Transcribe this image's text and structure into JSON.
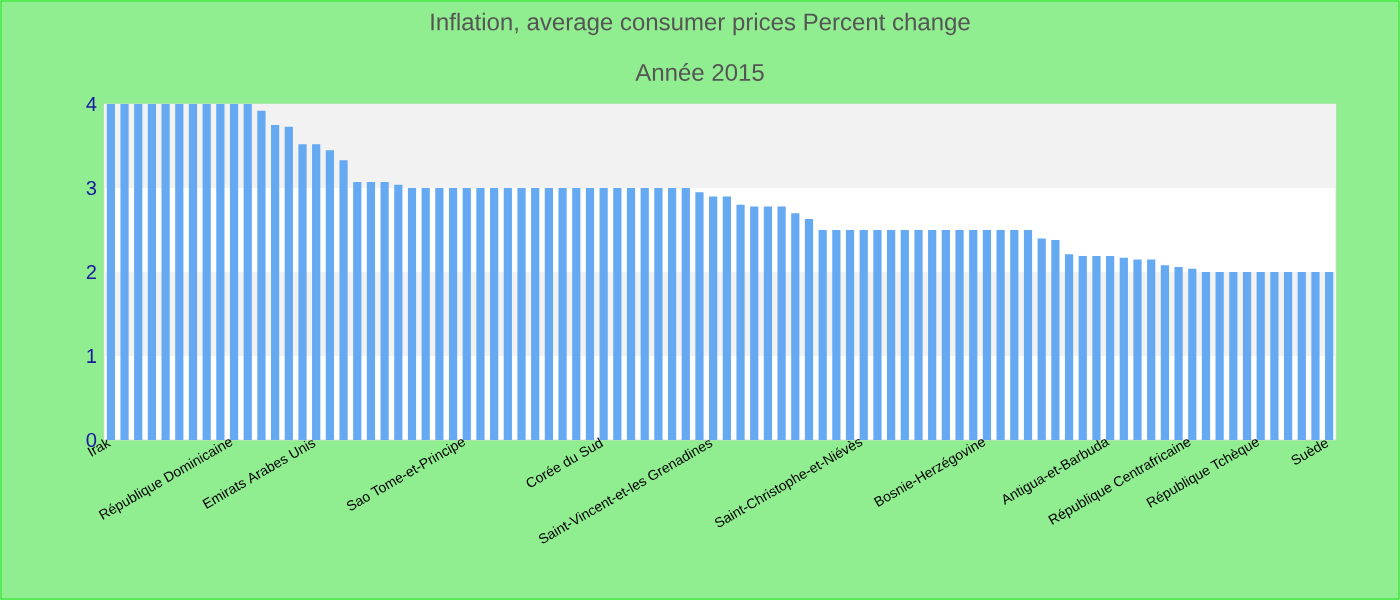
{
  "chart_data": {
    "type": "bar",
    "title": "Inflation, average consumer prices  Percent change",
    "subtitle": "Année 2015",
    "categories": [
      "Irak",
      null,
      null,
      null,
      null,
      null,
      null,
      null,
      null,
      "République Dominicaine",
      null,
      null,
      null,
      null,
      null,
      "Emirats Arabes Unis",
      null,
      null,
      null,
      null,
      null,
      null,
      null,
      null,
      null,
      null,
      "Sao Tome-et-Principe",
      null,
      null,
      null,
      null,
      null,
      null,
      null,
      null,
      null,
      "Corée du Sud",
      null,
      null,
      null,
      null,
      null,
      null,
      null,
      "Saint-Vincent-et-les Grenadines",
      null,
      null,
      null,
      null,
      null,
      null,
      null,
      null,
      null,
      null,
      "Saint-Christophe-et-Niévès",
      null,
      null,
      null,
      null,
      null,
      null,
      null,
      null,
      "Bosnie-Herzégovine",
      null,
      null,
      null,
      null,
      null,
      null,
      null,
      null,
      "Antigua-et-Barbuda",
      null,
      null,
      null,
      null,
      null,
      "République Centrafricaine",
      null,
      null,
      null,
      null,
      "République Tchèque",
      null,
      null,
      null,
      null,
      "Suède"
    ],
    "values": [
      4,
      4,
      4,
      4,
      4,
      4,
      4,
      4,
      4,
      4,
      4,
      3.92,
      3.75,
      3.73,
      3.52,
      3.52,
      3.45,
      3.33,
      3.07,
      3.07,
      3.07,
      3.04,
      3,
      3,
      3,
      3,
      3,
      3,
      3,
      3,
      3,
      3,
      3,
      3,
      3,
      3,
      3,
      3,
      3,
      3,
      3,
      3,
      3,
      2.95,
      2.9,
      2.9,
      2.8,
      2.78,
      2.78,
      2.78,
      2.7,
      2.63,
      2.5,
      2.5,
      2.5,
      2.5,
      2.5,
      2.5,
      2.5,
      2.5,
      2.5,
      2.5,
      2.5,
      2.5,
      2.5,
      2.5,
      2.5,
      2.5,
      2.4,
      2.38,
      2.21,
      2.19,
      2.19,
      2.19,
      2.17,
      2.15,
      2.15,
      2.08,
      2.06,
      2.04,
      2,
      2,
      2,
      2,
      2,
      2,
      2,
      2,
      2,
      2
    ],
    "color": "#64a9f2",
    "ylim": [
      0,
      4
    ],
    "yticks": [
      0,
      1,
      2,
      3,
      4
    ],
    "bands": [
      {
        "axis": "y",
        "from": 3,
        "to": 4,
        "color": "#f2f2f2"
      },
      {
        "axis": "y",
        "from": 1,
        "to": 2,
        "color": "#f2f2f2"
      }
    ]
  }
}
